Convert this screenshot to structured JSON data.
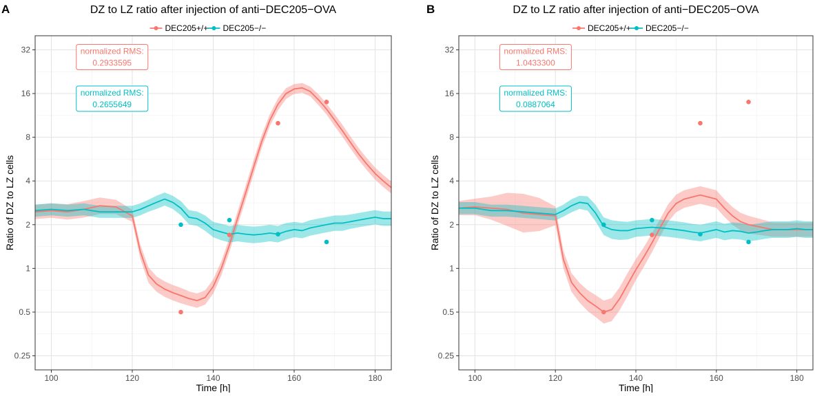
{
  "colors": {
    "red": "#f8766d",
    "teal": "#00bfc4",
    "panel_bg": "#ffffff",
    "grid_major": "#e3e3e3",
    "grid_minor": "#f1f1f1",
    "border": "#333333",
    "text": "#000000",
    "tick": "#4d4d4d"
  },
  "chart_data": [
    {
      "type": "line",
      "panel_label": "A",
      "title": "DZ to LZ ratio after injection of anti−DEC205−OVA",
      "xlabel": "Time [h]",
      "ylabel": "Ratio of DZ to LZ cells",
      "xlim": [
        96,
        184
      ],
      "ylim": [
        0.2,
        40
      ],
      "yscale": "log2",
      "x_ticks": [
        100,
        120,
        140,
        160,
        180
      ],
      "y_ticks": [
        0.25,
        0.5,
        1,
        2,
        4,
        8,
        16,
        32
      ],
      "y_tick_labels": [
        "0.25",
        "0.5",
        "1",
        "2",
        "4",
        "8",
        "16",
        "32"
      ],
      "legend": {
        "placement": "top-center",
        "entries": [
          "DEC205+/+",
          "DEC205−/−"
        ]
      },
      "series": [
        {
          "name": "DEC205+/+",
          "color": "#f8766d",
          "line": {
            "x": [
              96,
              100,
              104,
              108,
              112,
              116,
              120,
              122,
              124,
              126,
              128,
              130,
              132,
              134,
              136,
              138,
              140,
              142,
              144,
              146,
              148,
              150,
              152,
              154,
              156,
              158,
              160,
              162,
              164,
              166,
              168,
              170,
              172,
              174,
              176,
              178,
              180,
              182,
              184
            ],
            "y": [
              2.45,
              2.5,
              2.45,
              2.55,
              2.7,
              2.65,
              2.3,
              1.3,
              0.9,
              0.78,
              0.72,
              0.68,
              0.65,
              0.62,
              0.6,
              0.63,
              0.75,
              1.0,
              1.45,
              2.2,
              3.3,
              5.0,
              7.5,
              10.5,
              13.5,
              16.0,
              17.2,
              17.5,
              16.5,
              14.5,
              12.5,
              10.5,
              8.8,
              7.3,
              6.1,
              5.2,
              4.5,
              4.0,
              3.6
            ]
          },
          "band_width": [
            0.12,
            0.12,
            0.13,
            0.14,
            0.14,
            0.12,
            0.1,
            0.12,
            0.13,
            0.13,
            0.13,
            0.13,
            0.13,
            0.12,
            0.12,
            0.12,
            0.12,
            0.12,
            0.12,
            0.12,
            0.12,
            0.12,
            0.11,
            0.1,
            0.1,
            0.09,
            0.08,
            0.08,
            0.08,
            0.09,
            0.09,
            0.1,
            0.1,
            0.1,
            0.1,
            0.1,
            0.1,
            0.1,
            0.1
          ],
          "points": {
            "x": [
              132,
              144,
              156,
              168
            ],
            "y": [
              0.5,
              1.7,
              10.0,
              14.0
            ]
          }
        },
        {
          "name": "DEC205−/−",
          "color": "#00bfc4",
          "line": {
            "x": [
              96,
              100,
              104,
              108,
              112,
              116,
              120,
              122,
              124,
              126,
              128,
              130,
              132,
              134,
              136,
              138,
              140,
              142,
              144,
              146,
              148,
              150,
              152,
              154,
              156,
              158,
              160,
              162,
              164,
              166,
              168,
              170,
              172,
              174,
              176,
              178,
              180,
              182,
              184
            ],
            "y": [
              2.5,
              2.55,
              2.5,
              2.55,
              2.45,
              2.45,
              2.45,
              2.55,
              2.7,
              2.85,
              3.0,
              2.85,
              2.6,
              2.25,
              2.2,
              2.05,
              1.85,
              1.78,
              1.72,
              1.75,
              1.72,
              1.7,
              1.72,
              1.75,
              1.72,
              1.8,
              1.85,
              1.82,
              1.9,
              1.95,
              2.0,
              2.05,
              2.05,
              2.1,
              2.15,
              2.2,
              2.25,
              2.2,
              2.2
            ]
          },
          "band_width": [
            0.1,
            0.1,
            0.1,
            0.1,
            0.1,
            0.1,
            0.1,
            0.1,
            0.1,
            0.11,
            0.11,
            0.11,
            0.12,
            0.12,
            0.12,
            0.13,
            0.13,
            0.14,
            0.14,
            0.14,
            0.14,
            0.14,
            0.14,
            0.14,
            0.14,
            0.14,
            0.13,
            0.13,
            0.13,
            0.13,
            0.13,
            0.13,
            0.13,
            0.12,
            0.12,
            0.12,
            0.12,
            0.12,
            0.12
          ],
          "points": {
            "x": [
              132,
              144,
              156,
              168
            ],
            "y": [
              2.0,
              2.15,
              1.72,
              1.52
            ]
          }
        }
      ],
      "annotations": [
        {
          "label": "normalized RMS:",
          "value": "0.2933595",
          "series": "DEC205+/+",
          "x": 106,
          "y": 29
        },
        {
          "label": "normalized RMS:",
          "value": "0.2655649",
          "series": "DEC205−/−",
          "x": 106,
          "y": 15
        }
      ]
    },
    {
      "type": "line",
      "panel_label": "B",
      "title": "DZ to LZ ratio after injection of anti−DEC205−OVA",
      "xlabel": "Time [h]",
      "ylabel": "Ratio of DZ to LZ cells",
      "xlim": [
        96,
        184
      ],
      "ylim": [
        0.2,
        40
      ],
      "yscale": "log2",
      "x_ticks": [
        100,
        120,
        140,
        160,
        180
      ],
      "y_ticks": [
        0.25,
        0.5,
        1,
        2,
        4,
        8,
        16,
        32
      ],
      "y_tick_labels": [
        "0.25",
        "0.5",
        "1",
        "2",
        "4",
        "8",
        "16",
        "32"
      ],
      "legend": {
        "placement": "top-center",
        "entries": [
          "DEC205+/+",
          "DEC205−/−"
        ]
      },
      "series": [
        {
          "name": "DEC205+/+",
          "color": "#f8766d",
          "line": {
            "x": [
              96,
              100,
              104,
              108,
              112,
              116,
              120,
              122,
              124,
              126,
              128,
              130,
              132,
              134,
              136,
              138,
              140,
              142,
              144,
              146,
              148,
              150,
              152,
              154,
              156,
              158,
              160,
              162,
              164,
              166,
              168,
              170,
              172,
              174,
              176,
              178,
              180,
              182,
              184
            ],
            "y": [
              2.6,
              2.65,
              2.6,
              2.55,
              2.4,
              2.35,
              2.3,
              1.15,
              0.8,
              0.68,
              0.6,
              0.55,
              0.5,
              0.52,
              0.62,
              0.78,
              0.98,
              1.2,
              1.5,
              1.9,
              2.4,
              2.8,
              3.0,
              3.1,
              3.2,
              3.1,
              3.0,
              2.6,
              2.3,
              2.1,
              2.0,
              1.95,
              1.9,
              1.85,
              1.85,
              1.85,
              1.85,
              1.85,
              1.85
            ]
          },
          "band_width": [
            0.12,
            0.14,
            0.2,
            0.3,
            0.36,
            0.3,
            0.16,
            0.15,
            0.16,
            0.17,
            0.18,
            0.19,
            0.2,
            0.2,
            0.2,
            0.2,
            0.18,
            0.17,
            0.16,
            0.15,
            0.15,
            0.15,
            0.15,
            0.15,
            0.15,
            0.15,
            0.15,
            0.15,
            0.15,
            0.15,
            0.15,
            0.14,
            0.13,
            0.12,
            0.12,
            0.12,
            0.12,
            0.12,
            0.12
          ],
          "points": {
            "x": [
              132,
              144,
              156,
              168
            ],
            "y": [
              0.5,
              1.7,
              10.0,
              14.0
            ]
          }
        },
        {
          "name": "DEC205−/−",
          "color": "#00bfc4",
          "line": {
            "x": [
              96,
              100,
              104,
              108,
              112,
              116,
              120,
              122,
              124,
              126,
              128,
              130,
              132,
              134,
              136,
              138,
              140,
              142,
              144,
              146,
              148,
              150,
              152,
              154,
              156,
              158,
              160,
              162,
              164,
              166,
              168,
              170,
              172,
              174,
              176,
              178,
              180,
              182,
              184
            ],
            "y": [
              2.6,
              2.6,
              2.5,
              2.5,
              2.45,
              2.4,
              2.35,
              2.5,
              2.7,
              2.85,
              2.8,
              2.4,
              1.95,
              1.85,
              1.82,
              1.82,
              1.88,
              1.9,
              1.92,
              1.9,
              1.88,
              1.85,
              1.82,
              1.78,
              1.75,
              1.8,
              1.85,
              1.78,
              1.82,
              1.8,
              1.75,
              1.78,
              1.82,
              1.85,
              1.85,
              1.85,
              1.88,
              1.85,
              1.85
            ]
          },
          "band_width": [
            0.1,
            0.1,
            0.1,
            0.1,
            0.1,
            0.1,
            0.1,
            0.1,
            0.11,
            0.11,
            0.12,
            0.14,
            0.15,
            0.16,
            0.16,
            0.15,
            0.14,
            0.14,
            0.14,
            0.14,
            0.14,
            0.14,
            0.14,
            0.14,
            0.14,
            0.14,
            0.14,
            0.14,
            0.14,
            0.14,
            0.14,
            0.14,
            0.14,
            0.14,
            0.14,
            0.14,
            0.14,
            0.14,
            0.14
          ],
          "points": {
            "x": [
              132,
              144,
              156,
              168
            ],
            "y": [
              2.0,
              2.15,
              1.72,
              1.52
            ]
          }
        }
      ],
      "annotations": [
        {
          "label": "normalized RMS:",
          "value": "1.0433300",
          "series": "DEC205+/+",
          "x": 106,
          "y": 29
        },
        {
          "label": "normalized RMS:",
          "value": "0.0887064",
          "series": "DEC205−/−",
          "x": 106,
          "y": 15
        }
      ]
    }
  ]
}
